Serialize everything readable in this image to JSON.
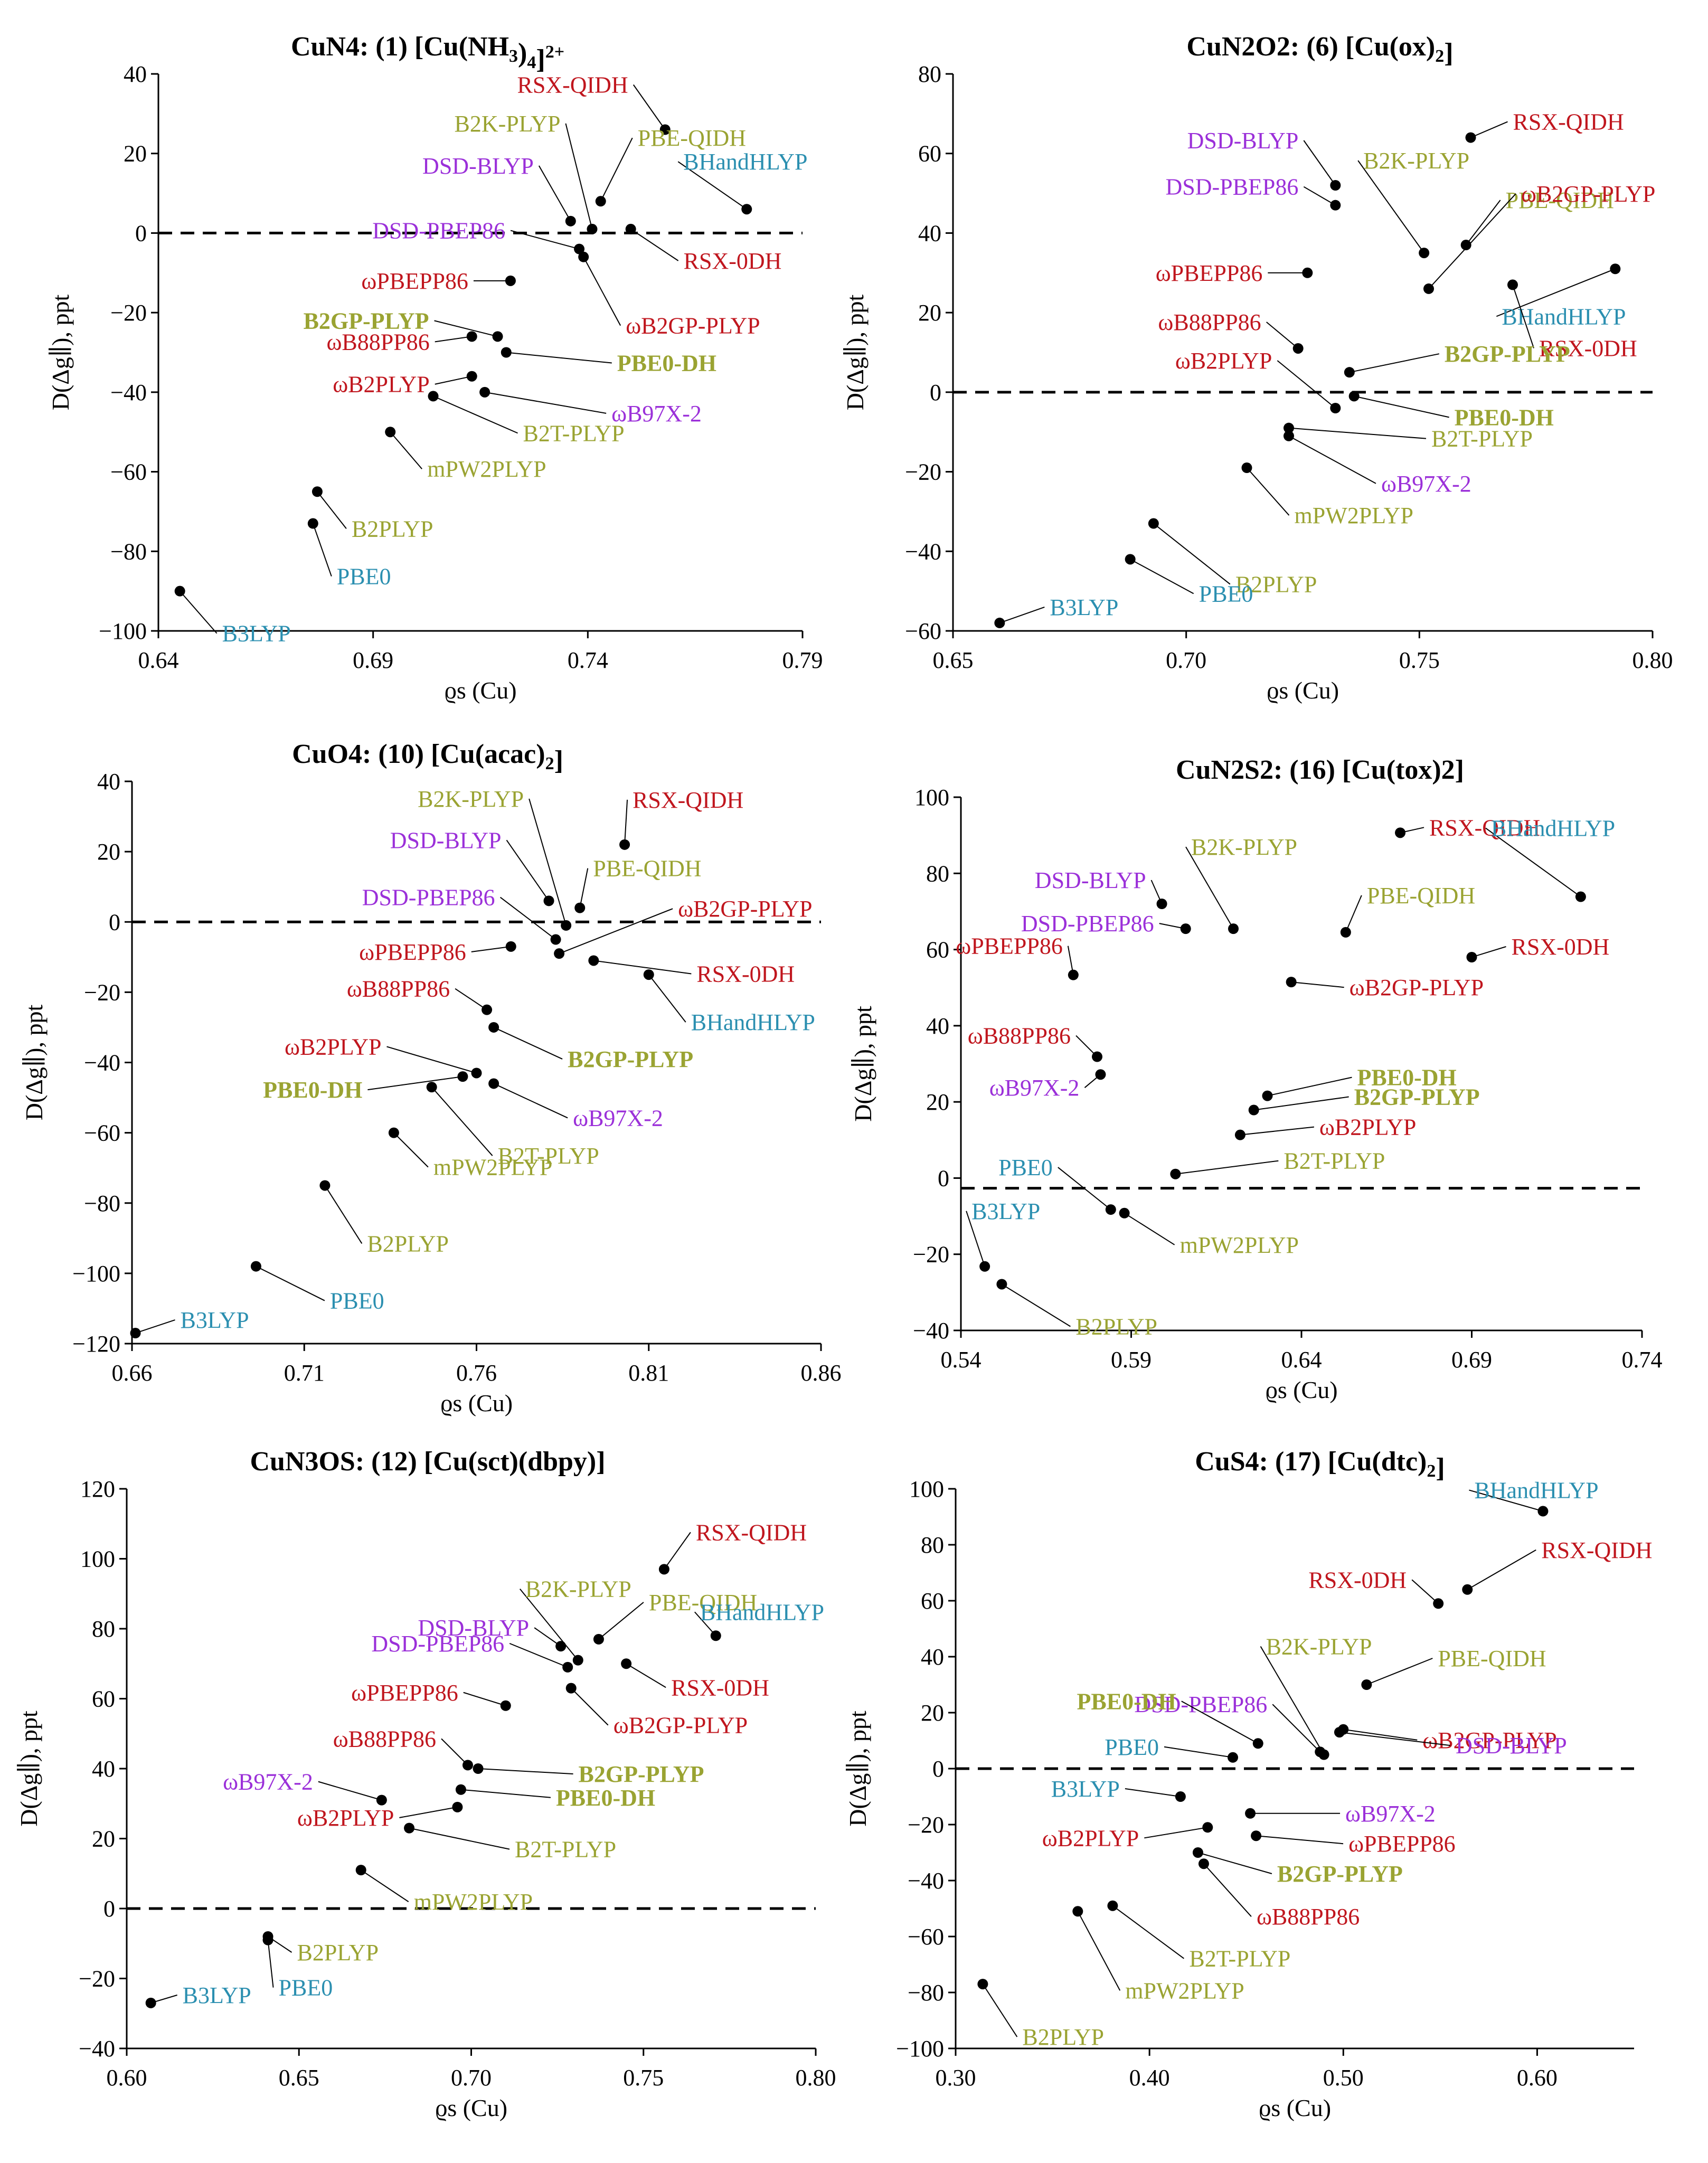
{
  "colors": {
    "red": "#c0161e",
    "olive": "#9aa332",
    "purple": "#9b30d9",
    "teal": "#2b8fb0",
    "black": "#000000"
  },
  "chart_data": [
    {
      "type": "scatter",
      "title": "CuN4: (1) [Cu(NH3)4]2+",
      "xlabel": "ϱs (Cu)",
      "ylabel": "D(Δg∥), ppt",
      "xlim": [
        0.64,
        0.79
      ],
      "ylim": [
        -100,
        40
      ],
      "xticks": [
        "0.64",
        "0.69",
        "0.74",
        "0.79"
      ],
      "yticks": [
        "−100",
        "−80",
        "−60",
        "−40",
        "−20",
        "0",
        "20",
        "40"
      ],
      "zero_line": "dashed",
      "points": [
        {
          "label": "RSX-QIDH",
          "x": 0.758,
          "y": 26,
          "color": "red",
          "bold": false
        },
        {
          "label": "B2K-PLYP",
          "x": 0.741,
          "y": 1,
          "color": "olive",
          "bold": false
        },
        {
          "label": "PBE-QIDH",
          "x": 0.743,
          "y": 8,
          "color": "olive",
          "bold": false
        },
        {
          "label": "BHandHLYP",
          "x": 0.777,
          "y": 6,
          "color": "teal",
          "bold": false
        },
        {
          "label": "DSD-BLYP",
          "x": 0.736,
          "y": 3,
          "color": "purple",
          "bold": false
        },
        {
          "label": "DSD-PBEP86",
          "x": 0.738,
          "y": -4,
          "color": "purple",
          "bold": false
        },
        {
          "label": "RSX-0DH",
          "x": 0.75,
          "y": 1,
          "color": "red",
          "bold": false
        },
        {
          "label": "ωPBEPP86",
          "x": 0.722,
          "y": -12,
          "color": "red",
          "bold": false
        },
        {
          "label": "ωB2GP-PLYP",
          "x": 0.739,
          "y": -6,
          "color": "red",
          "bold": false
        },
        {
          "label": "B2GP-PLYP",
          "x": 0.719,
          "y": -26,
          "color": "olive",
          "bold": true
        },
        {
          "label": "ωB88PP86",
          "x": 0.713,
          "y": -26,
          "color": "red",
          "bold": false
        },
        {
          "label": "PBE0-DH",
          "x": 0.721,
          "y": -30,
          "color": "olive",
          "bold": true
        },
        {
          "label": "ωB2PLYP",
          "x": 0.713,
          "y": -36,
          "color": "red",
          "bold": false
        },
        {
          "label": "ωB97X-2",
          "x": 0.716,
          "y": -40,
          "color": "purple",
          "bold": false
        },
        {
          "label": "B2T-PLYP",
          "x": 0.704,
          "y": -41,
          "color": "olive",
          "bold": false
        },
        {
          "label": "mPW2PLYP",
          "x": 0.694,
          "y": -50,
          "color": "olive",
          "bold": false
        },
        {
          "label": "B2PLYP",
          "x": 0.677,
          "y": -65,
          "color": "olive",
          "bold": false
        },
        {
          "label": "PBE0",
          "x": 0.676,
          "y": -73,
          "color": "teal",
          "bold": false
        },
        {
          "label": "B3LYP",
          "x": 0.645,
          "y": -90,
          "color": "teal",
          "bold": false
        }
      ]
    },
    {
      "type": "scatter",
      "title": "CuN2O2: (6) [Cu(ox)2]",
      "xlabel": "ϱs (Cu)",
      "ylabel": "D(Δg∥), ppt",
      "xlim": [
        0.65,
        0.8
      ],
      "ylim": [
        -60,
        80
      ],
      "xticks": [
        "0.65",
        "0.70",
        "0.75",
        "0.80"
      ],
      "yticks": [
        "−60",
        "−40",
        "−20",
        "0",
        "20",
        "40",
        "60",
        "80"
      ],
      "zero_line": "dashed",
      "points": [
        {
          "label": "RSX-QIDH",
          "x": 0.761,
          "y": 64,
          "color": "red",
          "bold": false
        },
        {
          "label": "B2K-PLYP",
          "x": 0.751,
          "y": 35,
          "color": "olive",
          "bold": false
        },
        {
          "label": "DSD-BLYP",
          "x": 0.732,
          "y": 52,
          "color": "purple",
          "bold": false
        },
        {
          "label": "DSD-PBEP86",
          "x": 0.732,
          "y": 47,
          "color": "purple",
          "bold": false
        },
        {
          "label": "PBE-QIDH",
          "x": 0.76,
          "y": 37,
          "color": "olive",
          "bold": false
        },
        {
          "label": "ωPBEPP86",
          "x": 0.726,
          "y": 30,
          "color": "red",
          "bold": false
        },
        {
          "label": "ωB2GP-PLYP",
          "x": 0.752,
          "y": 26,
          "color": "red",
          "bold": false
        },
        {
          "label": "BHandHLYP",
          "x": 0.792,
          "y": 31,
          "color": "teal",
          "bold": false
        },
        {
          "label": "RSX-0DH",
          "x": 0.77,
          "y": 27,
          "color": "red",
          "bold": false
        },
        {
          "label": "ωB88PP86",
          "x": 0.724,
          "y": 11,
          "color": "red",
          "bold": false
        },
        {
          "label": "ωB2PLYP",
          "x": 0.732,
          "y": -4,
          "color": "red",
          "bold": false
        },
        {
          "label": "B2GP-PLYP",
          "x": 0.735,
          "y": 5,
          "color": "olive",
          "bold": true
        },
        {
          "label": "PBE0-DH",
          "x": 0.736,
          "y": -1,
          "color": "olive",
          "bold": true
        },
        {
          "label": "B2T-PLYP",
          "x": 0.722,
          "y": -9,
          "color": "olive",
          "bold": false
        },
        {
          "label": "ωB97X-2",
          "x": 0.722,
          "y": -11,
          "color": "purple",
          "bold": false
        },
        {
          "label": "mPW2PLYP",
          "x": 0.713,
          "y": -19,
          "color": "olive",
          "bold": false
        },
        {
          "label": "B2PLYP",
          "x": 0.693,
          "y": -33,
          "color": "olive",
          "bold": false
        },
        {
          "label": "PBE0",
          "x": 0.688,
          "y": -42,
          "color": "teal",
          "bold": false
        },
        {
          "label": "B3LYP",
          "x": 0.66,
          "y": -58,
          "color": "teal",
          "bold": false
        }
      ]
    },
    {
      "type": "scatter",
      "title": "CuO4: (10) [Cu(acac)2]",
      "xlabel": "ϱs (Cu)",
      "ylabel": "D(Δg∥), ppt",
      "xlim": [
        0.66,
        0.86
      ],
      "ylim": [
        -120,
        40
      ],
      "xticks": [
        "0.66",
        "0.71",
        "0.76",
        "0.81",
        "0.86"
      ],
      "yticks": [
        "−120",
        "−100",
        "−80",
        "−60",
        "−40",
        "−20",
        "0",
        "20",
        "40"
      ],
      "zero_line": "dashed",
      "points": [
        {
          "label": "B2K-PLYP",
          "x": 0.786,
          "y": -1,
          "color": "olive",
          "bold": false
        },
        {
          "label": "RSX-QIDH",
          "x": 0.803,
          "y": 22,
          "color": "red",
          "bold": false
        },
        {
          "label": "DSD-BLYP",
          "x": 0.781,
          "y": 6,
          "color": "purple",
          "bold": false
        },
        {
          "label": "PBE-QIDH",
          "x": 0.79,
          "y": 4,
          "color": "olive",
          "bold": false
        },
        {
          "label": "DSD-PBEP86",
          "x": 0.783,
          "y": -5,
          "color": "purple",
          "bold": false
        },
        {
          "label": "ωB2GP-PLYP",
          "x": 0.784,
          "y": -9,
          "color": "red",
          "bold": false
        },
        {
          "label": "ωPBEPP86",
          "x": 0.77,
          "y": -7,
          "color": "red",
          "bold": false
        },
        {
          "label": "RSX-0DH",
          "x": 0.794,
          "y": -11,
          "color": "red",
          "bold": false
        },
        {
          "label": "BHandHLYP",
          "x": 0.81,
          "y": -15,
          "color": "teal",
          "bold": false
        },
        {
          "label": "ωB88PP86",
          "x": 0.763,
          "y": -25,
          "color": "red",
          "bold": false
        },
        {
          "label": "B2GP-PLYP",
          "x": 0.765,
          "y": -30,
          "color": "olive",
          "bold": true
        },
        {
          "label": "ωB2PLYP",
          "x": 0.76,
          "y": -43,
          "color": "red",
          "bold": false
        },
        {
          "label": "PBE0-DH",
          "x": 0.756,
          "y": -44,
          "color": "olive",
          "bold": true
        },
        {
          "label": "ωB97X-2",
          "x": 0.765,
          "y": -46,
          "color": "purple",
          "bold": false
        },
        {
          "label": "B2T-PLYP",
          "x": 0.747,
          "y": -47,
          "color": "olive",
          "bold": false
        },
        {
          "label": "mPW2PLYP",
          "x": 0.736,
          "y": -60,
          "color": "olive",
          "bold": false
        },
        {
          "label": "B2PLYP",
          "x": 0.716,
          "y": -75,
          "color": "olive",
          "bold": false
        },
        {
          "label": "PBE0",
          "x": 0.696,
          "y": -98,
          "color": "teal",
          "bold": false
        },
        {
          "label": "B3LYP",
          "x": 0.661,
          "y": -117,
          "color": "teal",
          "bold": false
        }
      ]
    },
    {
      "type": "scatter",
      "title": "CuN2S2: (16) [Cu(tox)2]",
      "xlabel": "ϱs (Cu)",
      "ylabel": "D(Δg∥), ppt",
      "xlim": [
        0.54,
        0.74
      ],
      "ylim": [
        -40,
        110
      ],
      "xticks": [
        "0.54",
        "0.59",
        "0.64",
        "0.69",
        "0.74"
      ],
      "yticks": [
        "−40",
        "−20",
        "0",
        "20",
        "40",
        "60",
        "80",
        "100"
      ],
      "zero_line": "dashed",
      "points": [
        {
          "label": "RSX-QIDH",
          "x": 0.669,
          "y": 100,
          "color": "red",
          "bold": false
        },
        {
          "label": "DSD-BLYP",
          "x": 0.599,
          "y": 80,
          "color": "purple",
          "bold": false
        },
        {
          "label": "B2K-PLYP",
          "x": 0.62,
          "y": 73,
          "color": "olive",
          "bold": false
        },
        {
          "label": "BHandHLYP",
          "x": 0.722,
          "y": 82,
          "color": "teal",
          "bold": false
        },
        {
          "label": "DSD-PBEP86",
          "x": 0.606,
          "y": 73,
          "color": "purple",
          "bold": false
        },
        {
          "label": "PBE-QIDH",
          "x": 0.653,
          "y": 72,
          "color": "olive",
          "bold": false
        },
        {
          "label": "ωPBEPP86",
          "x": 0.573,
          "y": 60,
          "color": "red",
          "bold": false
        },
        {
          "label": "RSX-0DH",
          "x": 0.69,
          "y": 65,
          "color": "red",
          "bold": false
        },
        {
          "label": "ωB2GP-PLYP",
          "x": 0.637,
          "y": 58,
          "color": "red",
          "bold": false
        },
        {
          "label": "ωB88PP86",
          "x": 0.58,
          "y": 37,
          "color": "red",
          "bold": false
        },
        {
          "label": "ωB97X-2",
          "x": 0.581,
          "y": 32,
          "color": "purple",
          "bold": false
        },
        {
          "label": "PBE0-DH",
          "x": 0.63,
          "y": 26,
          "color": "olive",
          "bold": true
        },
        {
          "label": "B2GP-PLYP",
          "x": 0.626,
          "y": 22,
          "color": "olive",
          "bold": true
        },
        {
          "label": "ωB2PLYP",
          "x": 0.622,
          "y": 15,
          "color": "red",
          "bold": false
        },
        {
          "label": "B2T-PLYP",
          "x": 0.603,
          "y": 4,
          "color": "olive",
          "bold": false
        },
        {
          "label": "PBE0",
          "x": 0.584,
          "y": -6,
          "color": "teal",
          "bold": false
        },
        {
          "label": "mPW2PLYP",
          "x": 0.588,
          "y": -7,
          "color": "olive",
          "bold": false
        },
        {
          "label": "B3LYP",
          "x": 0.547,
          "y": -22,
          "color": "teal",
          "bold": false
        },
        {
          "label": "B2PLYP",
          "x": 0.552,
          "y": -27,
          "color": "olive",
          "bold": false
        }
      ]
    },
    {
      "type": "scatter",
      "title": "CuN3OS: (12) [Cu(sct)(dbpy)]",
      "xlabel": "ϱs (Cu)",
      "ylabel": "D(Δg∥), ppt",
      "xlim": [
        0.6,
        0.8
      ],
      "ylim": [
        -40,
        120
      ],
      "xticks": [
        "0.60",
        "0.65",
        "0.70",
        "0.75",
        "0.80"
      ],
      "yticks": [
        "−40",
        "−20",
        "0",
        "20",
        "40",
        "60",
        "80",
        "100",
        "120"
      ],
      "zero_line": "dashed",
      "points": [
        {
          "label": "RSX-QIDH",
          "x": 0.756,
          "y": 97,
          "color": "red",
          "bold": false
        },
        {
          "label": "B2K-PLYP",
          "x": 0.731,
          "y": 71,
          "color": "olive",
          "bold": false
        },
        {
          "label": "PBE-QIDH",
          "x": 0.737,
          "y": 77,
          "color": "olive",
          "bold": false
        },
        {
          "label": "DSD-BLYP",
          "x": 0.726,
          "y": 75,
          "color": "purple",
          "bold": false
        },
        {
          "label": "BHandHLYP",
          "x": 0.771,
          "y": 78,
          "color": "teal",
          "bold": false
        },
        {
          "label": "DSD-PBEP86",
          "x": 0.728,
          "y": 69,
          "color": "purple",
          "bold": false
        },
        {
          "label": "RSX-0DH",
          "x": 0.745,
          "y": 70,
          "color": "red",
          "bold": false
        },
        {
          "label": "ωB2GP-PLYP",
          "x": 0.729,
          "y": 63,
          "color": "red",
          "bold": false
        },
        {
          "label": "ωPBEPP86",
          "x": 0.71,
          "y": 58,
          "color": "red",
          "bold": false
        },
        {
          "label": "ωB88PP86",
          "x": 0.699,
          "y": 41,
          "color": "red",
          "bold": false
        },
        {
          "label": "B2GP-PLYP",
          "x": 0.702,
          "y": 40,
          "color": "olive",
          "bold": true
        },
        {
          "label": "ωB97X-2",
          "x": 0.674,
          "y": 31,
          "color": "purple",
          "bold": false
        },
        {
          "label": "PBE0-DH",
          "x": 0.697,
          "y": 34,
          "color": "olive",
          "bold": true
        },
        {
          "label": "ωB2PLYP",
          "x": 0.696,
          "y": 29,
          "color": "red",
          "bold": false
        },
        {
          "label": "B2T-PLYP",
          "x": 0.682,
          "y": 23,
          "color": "olive",
          "bold": false
        },
        {
          "label": "mPW2PLYP",
          "x": 0.668,
          "y": 11,
          "color": "olive",
          "bold": false
        },
        {
          "label": "B2PLYP",
          "x": 0.641,
          "y": -8,
          "color": "olive",
          "bold": false
        },
        {
          "label": "PBE0",
          "x": 0.641,
          "y": -9,
          "color": "teal",
          "bold": false
        },
        {
          "label": "B3LYP",
          "x": 0.607,
          "y": -27,
          "color": "teal",
          "bold": false
        }
      ]
    },
    {
      "type": "scatter",
      "title": "CuS4: (17) [Cu(dtc)2]",
      "xlabel": "ϱs (Cu)",
      "ylabel": "D(Δg∥), ppt",
      "xlim": [
        0.3,
        0.65
      ],
      "ylim": [
        -100,
        100
      ],
      "xticks": [
        "0.30",
        "0.40",
        "0.50",
        "0.60"
      ],
      "yticks": [
        "−100",
        "−80",
        "−60",
        "−40",
        "−20",
        "0",
        "20",
        "40",
        "60",
        "80",
        "100"
      ],
      "zero_line": "dashed",
      "points": [
        {
          "label": "BHandHLYP",
          "x": 0.603,
          "y": 92,
          "color": "teal",
          "bold": false
        },
        {
          "label": "RSX-QIDH",
          "x": 0.564,
          "y": 64,
          "color": "red",
          "bold": false
        },
        {
          "label": "RSX-0DH",
          "x": 0.549,
          "y": 59,
          "color": "red",
          "bold": false
        },
        {
          "label": "B2K-PLYP",
          "x": 0.49,
          "y": 5,
          "color": "olive",
          "bold": false
        },
        {
          "label": "PBE-QIDH",
          "x": 0.512,
          "y": 30,
          "color": "olive",
          "bold": false
        },
        {
          "label": "ωB2GP-PLYP",
          "x": 0.5,
          "y": 14,
          "color": "red",
          "bold": false
        },
        {
          "label": "DSD-PBEP86",
          "x": 0.488,
          "y": 6,
          "color": "purple",
          "bold": false
        },
        {
          "label": "PBE0-DH",
          "x": 0.456,
          "y": 9,
          "color": "olive",
          "bold": true
        },
        {
          "label": "DSD-BLYP",
          "x": 0.498,
          "y": 13,
          "color": "purple",
          "bold": false
        },
        {
          "label": "PBE0",
          "x": 0.443,
          "y": 4,
          "color": "teal",
          "bold": false
        },
        {
          "label": "B3LYP",
          "x": 0.416,
          "y": -10,
          "color": "teal",
          "bold": false
        },
        {
          "label": "ωB97X-2",
          "x": 0.452,
          "y": -16,
          "color": "purple",
          "bold": false
        },
        {
          "label": "ωB2PLYP",
          "x": 0.43,
          "y": -21,
          "color": "red",
          "bold": false
        },
        {
          "label": "ωPBEPP86",
          "x": 0.455,
          "y": -24,
          "color": "red",
          "bold": false
        },
        {
          "label": "B2GP-PLYP",
          "x": 0.425,
          "y": -30,
          "color": "olive",
          "bold": true
        },
        {
          "label": "ωB88PP86",
          "x": 0.428,
          "y": -34,
          "color": "red",
          "bold": false
        },
        {
          "label": "B2T-PLYP",
          "x": 0.381,
          "y": -49,
          "color": "olive",
          "bold": false
        },
        {
          "label": "mPW2PLYP",
          "x": 0.363,
          "y": -51,
          "color": "olive",
          "bold": false
        },
        {
          "label": "B2PLYP",
          "x": 0.314,
          "y": -77,
          "color": "olive",
          "bold": false
        }
      ]
    }
  ]
}
